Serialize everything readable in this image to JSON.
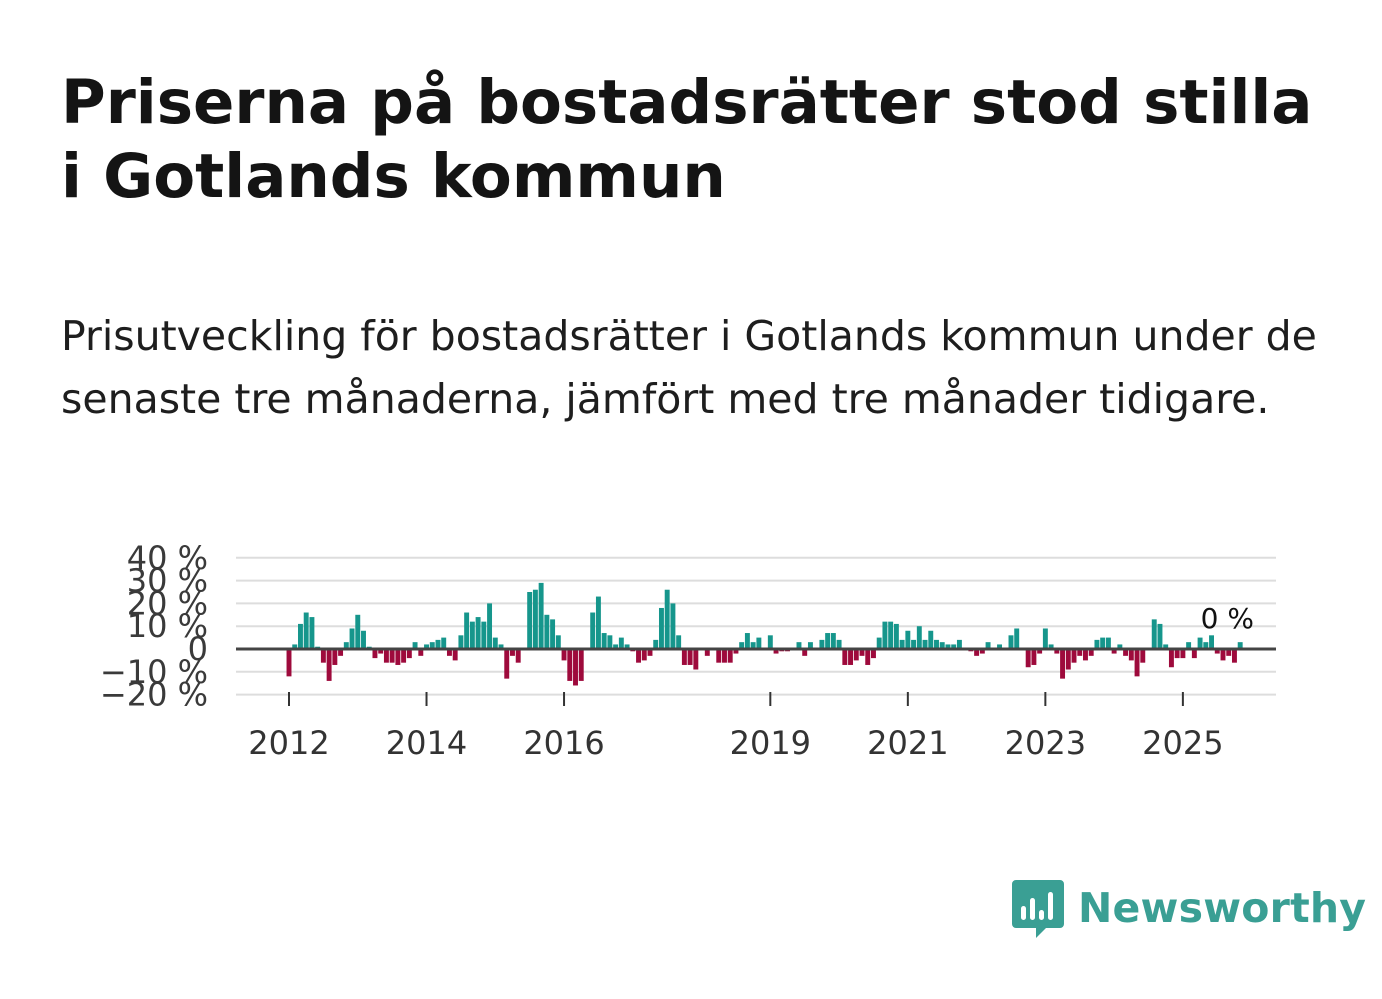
{
  "title": "Priserna på bostadsrätter stod stilla i Gotlands kommun",
  "subtitle": "Prisutveckling för bostadsrätter i Gotlands kommun under de senaste tre månaderna, jämfört med tre månader tidigare.",
  "brand": {
    "name": "Newsworthy",
    "color": "#3a9f94",
    "icon": "newsworthy-bar-chart-icon"
  },
  "chart_data": {
    "type": "bar",
    "unit": "%",
    "title": "",
    "xlabel": "",
    "ylabel": "",
    "ylim": [
      -20,
      40
    ],
    "yticks": [
      40,
      30,
      20,
      10,
      0,
      -10,
      -20
    ],
    "ytick_labels": [
      "40 %",
      "30 %",
      "20 %",
      "10 %",
      "0",
      "−10 %",
      "−20 %"
    ],
    "x_start": {
      "year": 2012,
      "month": 1
    },
    "xtick_labels": [
      "2012",
      "2014",
      "2016",
      "2019",
      "2021",
      "2023",
      "2025"
    ],
    "colors": {
      "positive": "#16968c",
      "negative": "#9e0a3c",
      "zero_line": "#444444",
      "grid": "#dddddd"
    },
    "annotation": {
      "label": "0 %",
      "value": 0
    },
    "values": [
      -12,
      2,
      11,
      16,
      14,
      1,
      -6,
      -14,
      -7,
      -3,
      3,
      9,
      15,
      8,
      1,
      -4,
      -2,
      -6,
      -6,
      -7,
      -6,
      -4,
      3,
      -3,
      2,
      3,
      4,
      5,
      -3,
      -5,
      6,
      16,
      12,
      14,
      12,
      20,
      5,
      2,
      -13,
      -3,
      -6,
      0,
      25,
      26,
      29,
      15,
      13,
      6,
      -5,
      -14,
      -16,
      -14,
      0,
      16,
      23,
      7,
      6,
      2,
      5,
      2,
      -1,
      -6,
      -5,
      -3,
      4,
      18,
      26,
      20,
      6,
      -7,
      -7,
      -9,
      0,
      -3,
      0,
      -6,
      -6,
      -6,
      -2,
      3,
      7,
      3,
      5,
      0,
      6,
      -2,
      -1,
      -1,
      0,
      3,
      -3,
      3,
      0,
      4,
      7,
      7,
      4,
      -7,
      -7,
      -5,
      -3,
      -7,
      -4,
      5,
      12,
      12,
      11,
      4,
      8,
      4,
      10,
      4,
      8,
      4,
      3,
      2,
      2,
      4,
      0,
      -1,
      -3,
      -2,
      3,
      0,
      2,
      0,
      6,
      9,
      0,
      -8,
      -7,
      -2,
      9,
      2,
      -2,
      -13,
      -9,
      -6,
      -3,
      -5,
      -3,
      4,
      5,
      5,
      -2,
      2,
      -3,
      -5,
      -12,
      -6,
      0,
      13,
      11,
      2,
      -8,
      -4,
      -4,
      3,
      -4,
      5,
      3,
      6,
      -2,
      -5,
      -3,
      -6,
      3,
      0,
      0
    ]
  }
}
